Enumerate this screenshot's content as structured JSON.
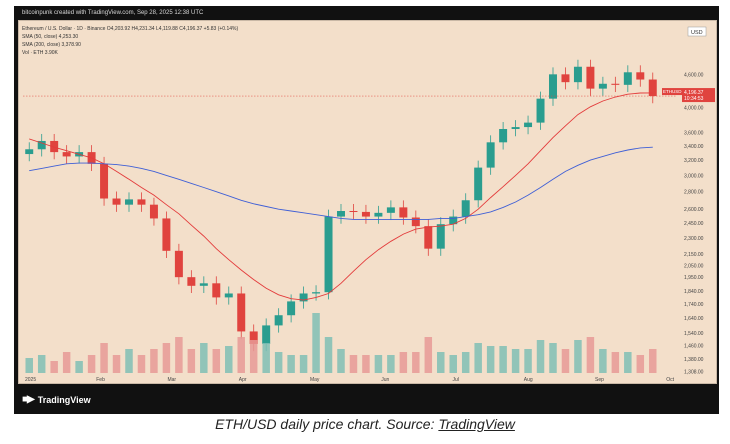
{
  "header_text": "bitcoinpunk created with TradingView.com, Sep 28, 2025 12:38 UTC",
  "legend": {
    "symbol_line": "Ethereum / U.S. Dollar · 1D · Binance  O4,203.92  H4,231.34  L4,119.88  C4,196.37  +5.83 (+0.14%)",
    "sma50_line": "SMA (50, close)  4,253.30",
    "sma200_line": "SMA (200, close)  3,378.90",
    "vol_line": "Vol · ETH  3.90K"
  },
  "currency_badge": "USD",
  "symbol_badge": "ETHUSD",
  "last_price_label": "4,196.37",
  "countdown_label": "10:34:53",
  "brand": "TradingView",
  "caption": {
    "prefix": "ETH/USD daily price chart. Source: ",
    "source": "TradingView"
  },
  "colors": {
    "background": "#f3dfca",
    "up": "#2a9d8f",
    "down": "#e0433e",
    "sma50": "#e33b3b",
    "sma200": "#3f5fd6",
    "vol_up": "#7fbfb5",
    "vol_down": "#e69a96"
  },
  "chart_data": {
    "type": "candlestick",
    "x_tick_labels": [
      "2025",
      "Feb",
      "Mar",
      "Apr",
      "May",
      "Jun",
      "Jul",
      "Aug",
      "Sep",
      "Oct"
    ],
    "y_tick_labels": [
      "4,600.00",
      "4,200.00",
      "4,000.00",
      "3,600.00",
      "3,400.00",
      "3,200.00",
      "3,000.00",
      "2,800.00",
      "2,600.00",
      "2,450.00",
      "2,300.00",
      "2,150.00",
      "2,050.00",
      "1,950.00",
      "1,840.00",
      "1,740.00",
      "1,640.00",
      "1,540.00",
      "1,460.00",
      "1,380.00",
      "1,308.00"
    ],
    "ylim": [
      1300,
      4950
    ],
    "log_scale": true,
    "weekly_closes": [
      3350,
      3470,
      3310,
      3250,
      3310,
      3150,
      2720,
      2650,
      2710,
      2650,
      2500,
      2180,
      1950,
      1880,
      1900,
      1790,
      1820,
      1550,
      1470,
      1590,
      1660,
      1760,
      1820,
      1830,
      2520,
      2580,
      2570,
      2520,
      2560,
      2620,
      2510,
      2420,
      2200,
      2440,
      2520,
      2700,
      3100,
      3450,
      3650,
      3680,
      3750,
      4150,
      4600,
      4450,
      4750,
      4330,
      4420,
      4400,
      4640,
      4500,
      4196
    ],
    "sma50_weekly": [
      3500,
      3440,
      3380,
      3330,
      3280,
      3230,
      3150,
      3050,
      2950,
      2850,
      2760,
      2650,
      2550,
      2430,
      2320,
      2200,
      2100,
      2010,
      1930,
      1860,
      1810,
      1780,
      1770,
      1790,
      1820,
      1900,
      2000,
      2100,
      2190,
      2270,
      2340,
      2390,
      2410,
      2420,
      2440,
      2500,
      2600,
      2730,
      2860,
      3000,
      3150,
      3330,
      3520,
      3700,
      3880,
      4010,
      4110,
      4180,
      4230,
      4250,
      4253
    ],
    "sma200_weekly": [
      3060,
      3090,
      3120,
      3150,
      3160,
      3160,
      3150,
      3140,
      3120,
      3090,
      3050,
      3000,
      2950,
      2900,
      2850,
      2800,
      2750,
      2700,
      2660,
      2630,
      2600,
      2580,
      2560,
      2540,
      2520,
      2500,
      2490,
      2490,
      2490,
      2490,
      2490,
      2490,
      2490,
      2500,
      2500,
      2520,
      2540,
      2570,
      2620,
      2680,
      2760,
      2850,
      2950,
      3050,
      3130,
      3200,
      3250,
      3300,
      3340,
      3370,
      3379
    ],
    "volume_weekly_rel": [
      0.25,
      0.3,
      0.2,
      0.35,
      0.2,
      0.3,
      0.5,
      0.3,
      0.4,
      0.3,
      0.4,
      0.5,
      0.6,
      0.4,
      0.5,
      0.4,
      0.45,
      0.6,
      0.55,
      0.5,
      0.35,
      0.3,
      0.3,
      1.0,
      0.6,
      0.4,
      0.3,
      0.3,
      0.3,
      0.3,
      0.35,
      0.35,
      0.6,
      0.35,
      0.3,
      0.35,
      0.5,
      0.45,
      0.45,
      0.4,
      0.4,
      0.55,
      0.5,
      0.4,
      0.55,
      0.6,
      0.4,
      0.35,
      0.35,
      0.3,
      0.4
    ],
    "series": [
      {
        "name": "SMA (50, close)",
        "last": 4253.3
      },
      {
        "name": "SMA (200, close)",
        "last": 3378.9
      }
    ],
    "grid": false
  }
}
